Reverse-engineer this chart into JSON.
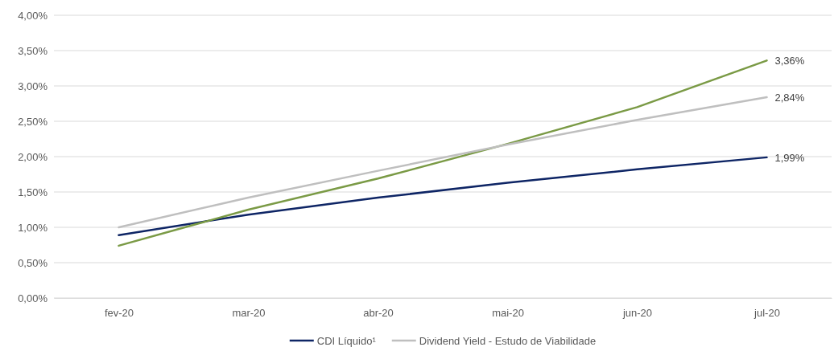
{
  "chart_data": {
    "type": "line",
    "categories": [
      "fev-20",
      "mar-20",
      "abr-20",
      "mai-20",
      "jun-20",
      "jul-20"
    ],
    "ylim": [
      0,
      4
    ],
    "yticks": [
      {
        "value": 0,
        "label": "0,00%"
      },
      {
        "value": 0.5,
        "label": "0,50%"
      },
      {
        "value": 1,
        "label": "1,00%"
      },
      {
        "value": 1.5,
        "label": "1,50%"
      },
      {
        "value": 2,
        "label": "2,00%"
      },
      {
        "value": 2.5,
        "label": "2,50%"
      },
      {
        "value": 3,
        "label": "3,00%"
      },
      {
        "value": 3.5,
        "label": "3,50%"
      },
      {
        "value": 4,
        "label": "4,00%"
      }
    ],
    "grid": "y",
    "legend": "bottom",
    "marker": "none",
    "line_style": "solid",
    "series": [
      {
        "name": "CDI Líquido¹",
        "color": "#0e2565",
        "values": [
          0.89,
          1.18,
          1.42,
          1.63,
          1.82,
          1.99
        ],
        "value_labels": [
          null,
          null,
          null,
          null,
          null,
          "1,99%"
        ]
      },
      {
        "color": "#7a9a45",
        "values": [
          0.74,
          1.25,
          1.69,
          2.18,
          2.7,
          3.36
        ],
        "value_labels": [
          null,
          null,
          null,
          null,
          null,
          "3,36%"
        ]
      },
      {
        "name": "Dividend Yield - Estudo de Viabilidade",
        "color": "#bfbfbf",
        "values": [
          1.0,
          1.42,
          1.8,
          2.17,
          2.52,
          2.84
        ],
        "value_labels": [
          null,
          null,
          null,
          null,
          null,
          "2,84%"
        ]
      }
    ]
  }
}
